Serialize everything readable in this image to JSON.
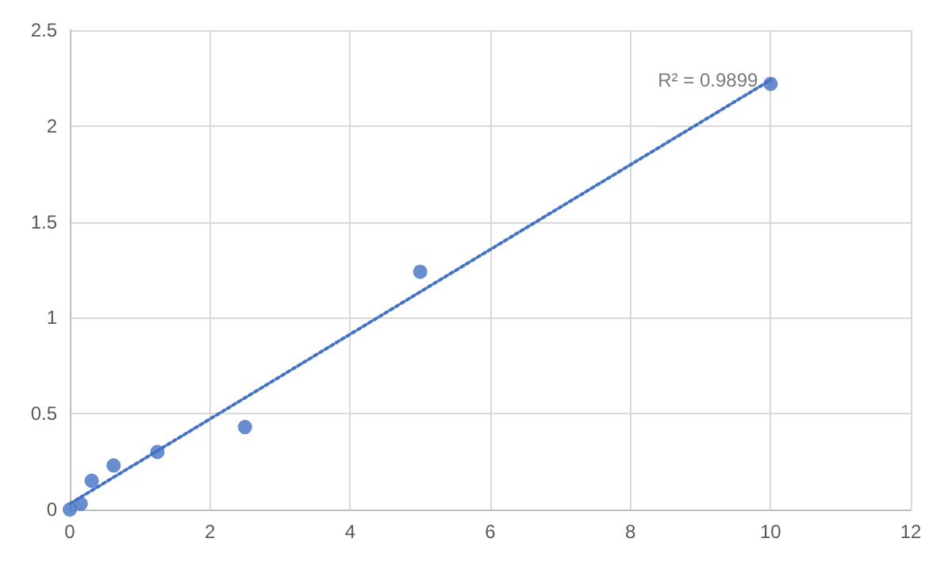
{
  "chart_data": {
    "type": "scatter",
    "x": [
      0,
      0.156,
      0.3125,
      0.625,
      1.25,
      2.5,
      5,
      10
    ],
    "series": [
      {
        "type": "scatter",
        "color": "#4472c4",
        "values": [
          0,
          0.03,
          0.15,
          0.23,
          0.3,
          0.43,
          1.24,
          2.22
        ]
      },
      {
        "type": "line",
        "color": "#4472c4",
        "x": [
          0,
          10
        ],
        "values": [
          0.03,
          2.24
        ],
        "line_style": "dotted",
        "marker": "none"
      }
    ],
    "xlim": [
      0,
      12
    ],
    "xticks": [
      0,
      2,
      4,
      6,
      8,
      10,
      12
    ],
    "ylim": [
      0,
      2.5
    ],
    "yticks": [
      0,
      0.5,
      1,
      1.5,
      2,
      2.5
    ],
    "grid": true,
    "marker": "circle",
    "annotations": [
      {
        "text": "R² = 0.9899",
        "x": 10,
        "y": 2.24
      }
    ]
  }
}
